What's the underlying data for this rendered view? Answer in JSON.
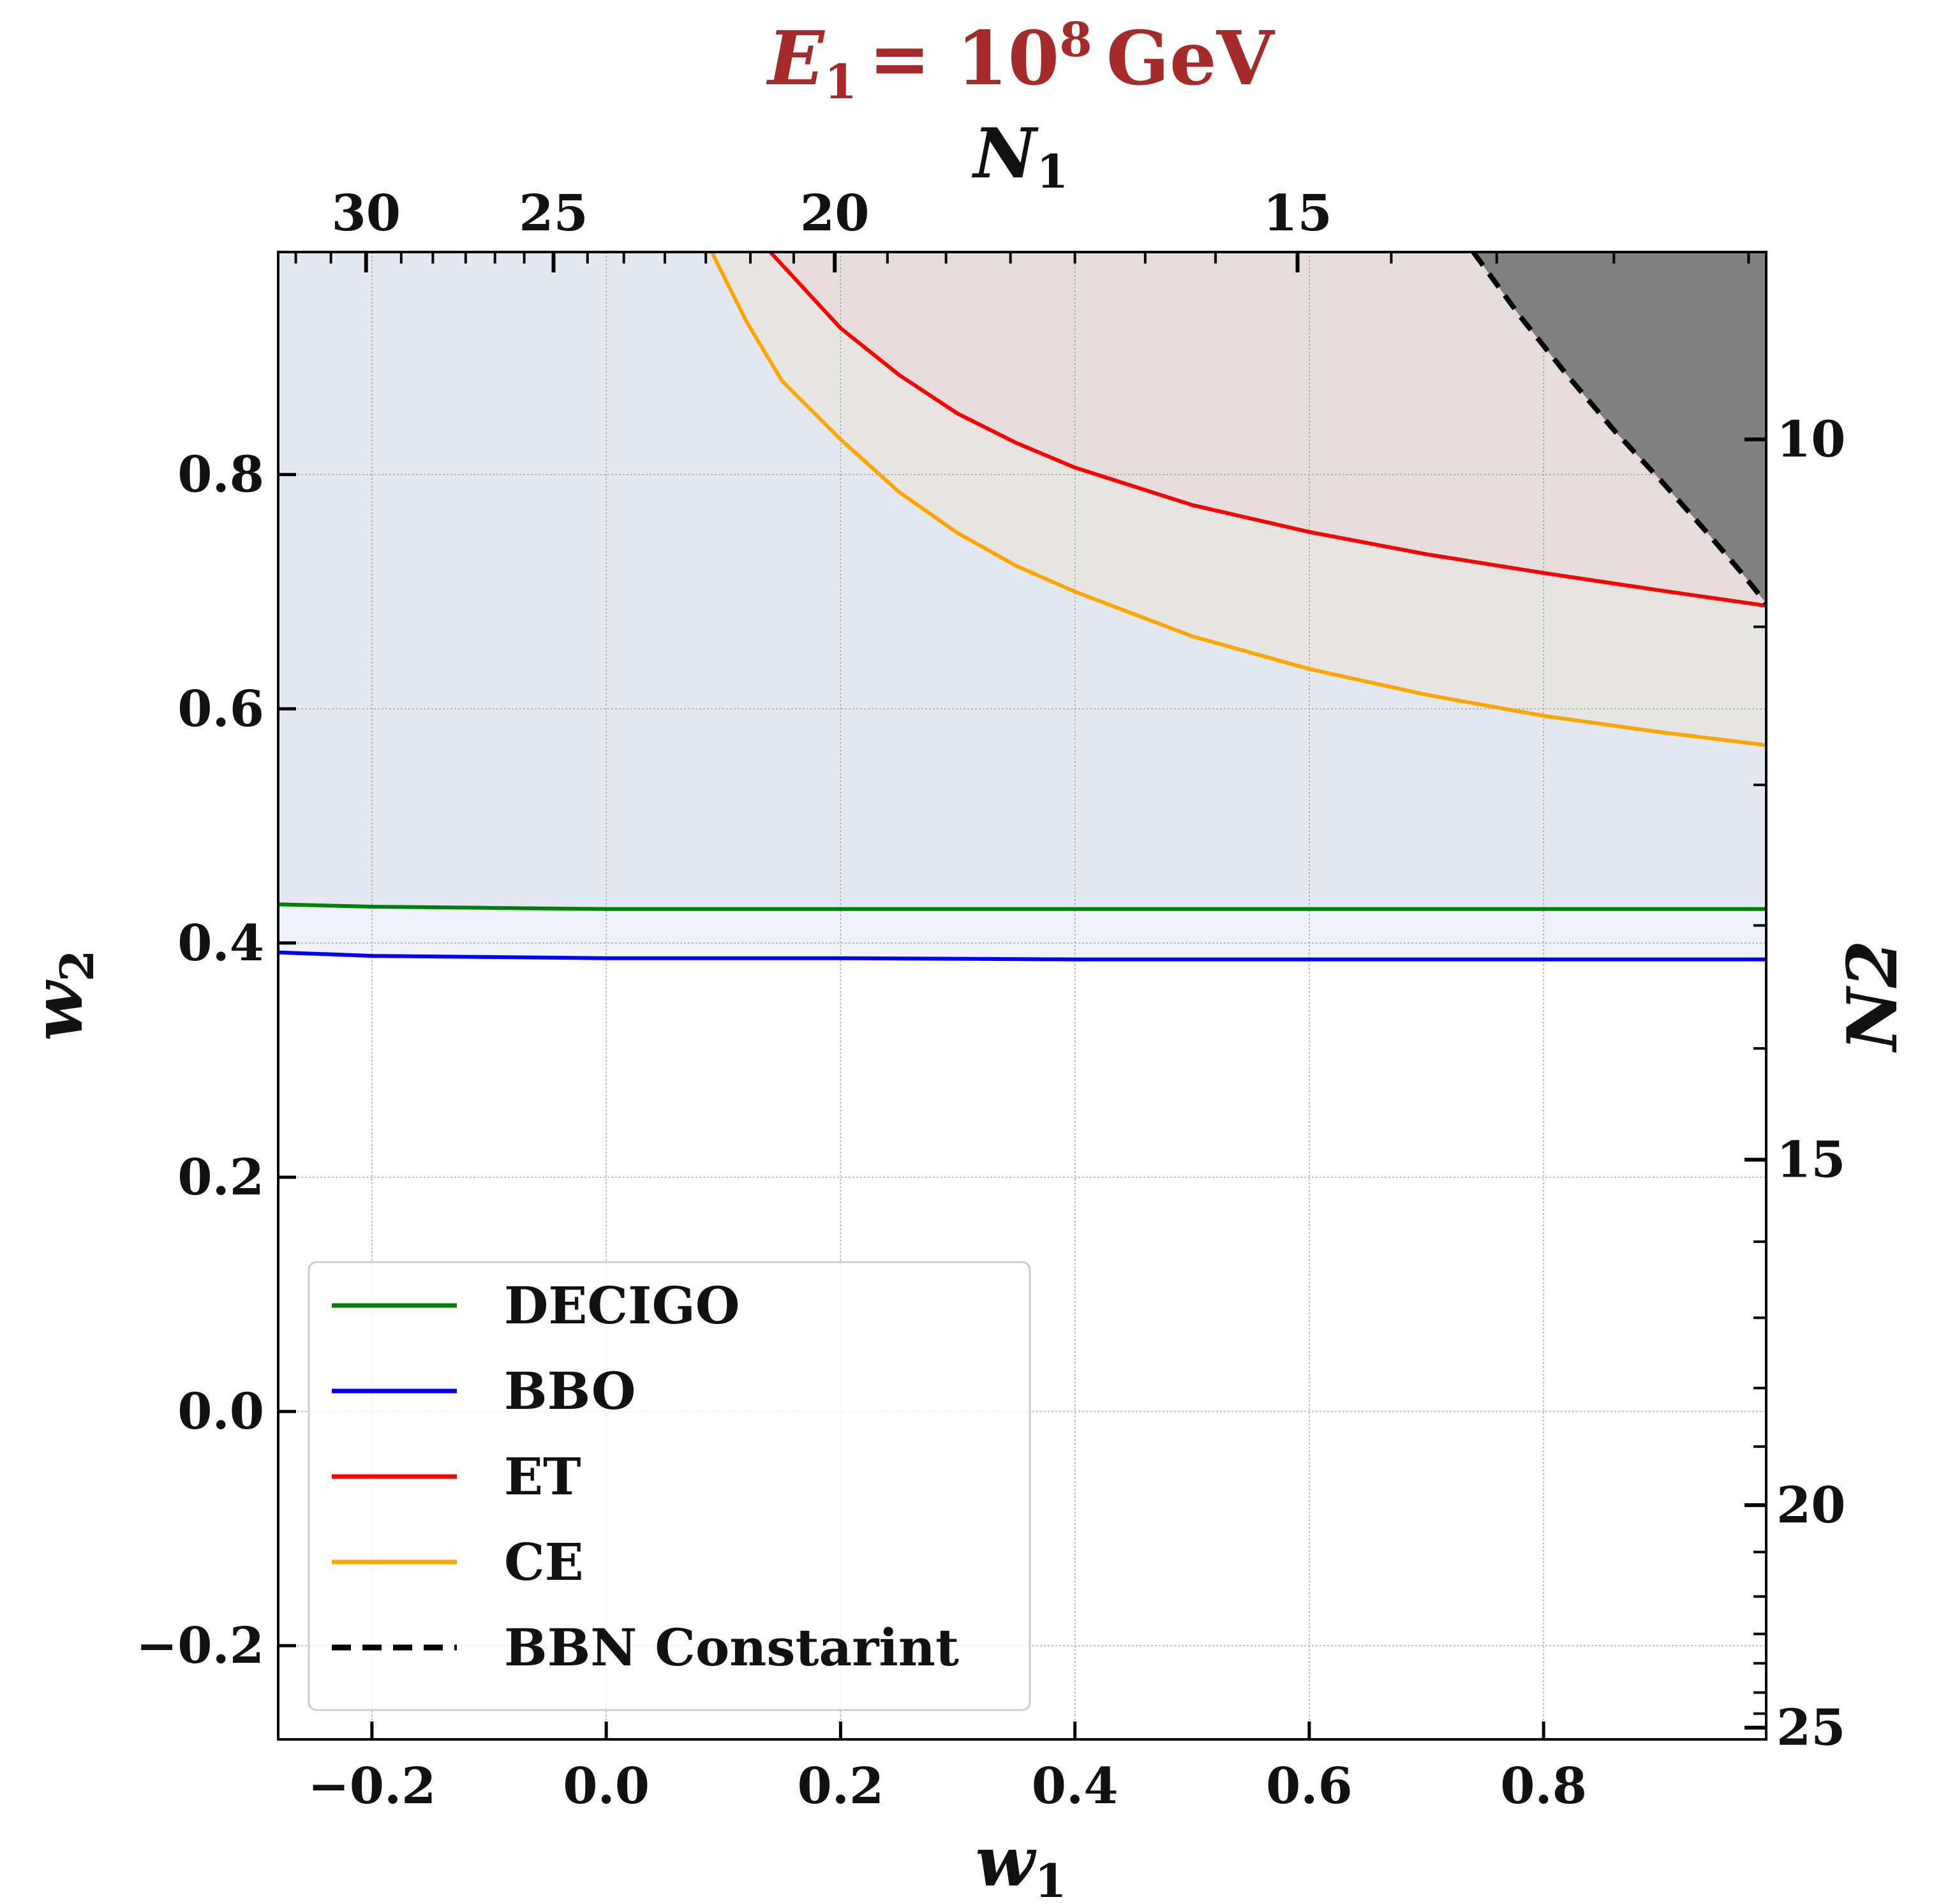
{
  "chart_data": {
    "type": "line",
    "title": "E₁ = 10⁸ GeV",
    "title_parts": {
      "var": "E",
      "sub": "1",
      "eq": "= 10",
      "sup": "8",
      "unit": "GeV"
    },
    "title_color": "#a52a2a",
    "xlabel": "w1",
    "xlabel_parts": {
      "var": "w",
      "sub": "1"
    },
    "ylabel": "w2",
    "ylabel_parts": {
      "var": "w",
      "sub": "2"
    },
    "top_xlabel": "N1",
    "top_xlabel_parts": {
      "var": "N",
      "sub": "1"
    },
    "right_ylabel": "N2",
    "xlim": [
      -0.28,
      0.99
    ],
    "ylim": [
      -0.28,
      0.99
    ],
    "x_ticks": [
      -0.2,
      0.0,
      0.2,
      0.4,
      0.6,
      0.8
    ],
    "x_tick_labels": [
      "−0.2",
      "0.0",
      "0.2",
      "0.4",
      "0.6",
      "0.8"
    ],
    "y_ticks": [
      -0.2,
      0.0,
      0.2,
      0.4,
      0.6,
      0.8
    ],
    "y_tick_labels": [
      "−0.2",
      "0.0",
      "0.2",
      "0.4",
      "0.6",
      "0.8"
    ],
    "top_ticks": [
      {
        "w1": -0.205,
        "label": "30"
      },
      {
        "w1": -0.045,
        "label": "25"
      },
      {
        "w1": 0.195,
        "label": "20"
      },
      {
        "w1": 0.59,
        "label": "15"
      }
    ],
    "top_minor_ticks": [
      -0.265,
      -0.235,
      -0.175,
      -0.148,
      -0.12,
      -0.095,
      -0.07,
      -0.016,
      0.015,
      0.05,
      0.085,
      0.123,
      0.16,
      0.24,
      0.29,
      0.345,
      0.4,
      0.46,
      0.52,
      0.67,
      0.76,
      0.86,
      0.975
    ],
    "right_ticks": [
      {
        "w2": 0.83,
        "label": "10"
      },
      {
        "w2": 0.215,
        "label": "15"
      },
      {
        "w2": -0.08,
        "label": "20"
      },
      {
        "w2": -0.27,
        "label": "25"
      }
    ],
    "right_minor_ticks": [
      0.67,
      0.535,
      0.415,
      0.31,
      0.145,
      0.08,
      0.02,
      -0.03,
      -0.12,
      -0.158,
      -0.19,
      -0.215,
      -0.24,
      -0.258
    ],
    "grid": true,
    "legend_position": "lower-left",
    "series": [
      {
        "name": "DECIGO",
        "color": "#008000",
        "dash": "solid",
        "x": [
          -0.28,
          -0.2,
          -0.1,
          0.0,
          0.2,
          0.4,
          0.6,
          0.8,
          0.99
        ],
        "y": [
          0.433,
          0.431,
          0.43,
          0.429,
          0.429,
          0.429,
          0.429,
          0.429,
          0.429
        ]
      },
      {
        "name": "BBO",
        "color": "#0000ff",
        "dash": "solid",
        "x": [
          -0.28,
          -0.2,
          -0.1,
          0.0,
          0.2,
          0.4,
          0.6,
          0.8,
          0.99
        ],
        "y": [
          0.392,
          0.389,
          0.388,
          0.387,
          0.387,
          0.386,
          0.386,
          0.386,
          0.386
        ]
      },
      {
        "name": "ET",
        "color": "#ff0000",
        "dash": "solid",
        "x": [
          0.14,
          0.2,
          0.25,
          0.3,
          0.35,
          0.4,
          0.5,
          0.6,
          0.7,
          0.8,
          0.9,
          0.99
        ],
        "y": [
          0.99,
          0.925,
          0.885,
          0.852,
          0.827,
          0.806,
          0.774,
          0.751,
          0.732,
          0.716,
          0.701,
          0.688
        ]
      },
      {
        "name": "CE",
        "color": "#ffa500",
        "dash": "solid",
        "x": [
          0.09,
          0.12,
          0.15,
          0.2,
          0.25,
          0.3,
          0.35,
          0.4,
          0.5,
          0.6,
          0.7,
          0.8,
          0.9,
          0.99
        ],
        "y": [
          0.99,
          0.93,
          0.88,
          0.83,
          0.785,
          0.75,
          0.722,
          0.7,
          0.662,
          0.634,
          0.612,
          0.594,
          0.58,
          0.569
        ]
      },
      {
        "name": "BBN Constarint",
        "color": "#000000",
        "dash": "dashed",
        "x": [
          0.74,
          0.78,
          0.82,
          0.86,
          0.9,
          0.94,
          0.97,
          0.99
        ],
        "y": [
          0.99,
          0.935,
          0.885,
          0.838,
          0.795,
          0.75,
          0.715,
          0.69
        ]
      }
    ],
    "regions": [
      {
        "name": "below-bbo",
        "color": "#ffffff"
      },
      {
        "name": "bbo-decigo-band",
        "color": "#eff1fb"
      },
      {
        "name": "decigo-ce-band",
        "color": "#e4e9f1"
      },
      {
        "name": "ce-et-band",
        "color": "#e7e6e2"
      },
      {
        "name": "et-region",
        "color": "#e6dcdb"
      },
      {
        "name": "bbn-excluded",
        "color": "#808080"
      }
    ]
  }
}
